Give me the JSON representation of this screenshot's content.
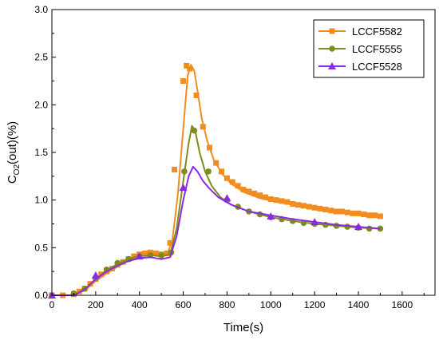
{
  "chart_data": {
    "type": "line",
    "xlabel": "Time(s)",
    "ylabel": {
      "base": "C",
      "sub": "O2",
      "rest": "(out)(%)"
    },
    "xlim": [
      0,
      1750
    ],
    "ylim": [
      0,
      3.0
    ],
    "x_ticks": [
      "0",
      "200",
      "400",
      "600",
      "800",
      "1000",
      "1200",
      "1400",
      "1600"
    ],
    "y_ticks": [
      "0.0",
      "0.5",
      "1.0",
      "1.5",
      "2.0",
      "2.5",
      "3.0"
    ],
    "grid": false,
    "legend_position": "top-right",
    "series": [
      {
        "name": "LCCF5582",
        "color": "#f28c1e",
        "marker": "square",
        "line": [
          [
            0,
            0.0
          ],
          [
            100,
            0.0
          ],
          [
            150,
            0.05
          ],
          [
            200,
            0.15
          ],
          [
            250,
            0.23
          ],
          [
            300,
            0.3
          ],
          [
            350,
            0.37
          ],
          [
            400,
            0.42
          ],
          [
            450,
            0.44
          ],
          [
            500,
            0.44
          ],
          [
            530,
            0.45
          ],
          [
            550,
            0.58
          ],
          [
            575,
            1.05
          ],
          [
            600,
            1.75
          ],
          [
            620,
            2.3
          ],
          [
            635,
            2.42
          ],
          [
            650,
            2.36
          ],
          [
            665,
            2.15
          ],
          [
            685,
            1.85
          ],
          [
            710,
            1.62
          ],
          [
            740,
            1.42
          ],
          [
            780,
            1.27
          ],
          [
            820,
            1.17
          ],
          [
            880,
            1.08
          ],
          [
            950,
            1.02
          ],
          [
            1050,
            0.97
          ],
          [
            1150,
            0.93
          ],
          [
            1250,
            0.89
          ],
          [
            1350,
            0.86
          ],
          [
            1450,
            0.84
          ],
          [
            1500,
            0.83
          ]
        ],
        "points": [
          [
            0,
            0.0
          ],
          [
            50,
            0.0
          ],
          [
            100,
            0.01
          ],
          [
            125,
            0.04
          ],
          [
            150,
            0.07
          ],
          [
            175,
            0.12
          ],
          [
            200,
            0.17
          ],
          [
            225,
            0.22
          ],
          [
            250,
            0.25
          ],
          [
            275,
            0.28
          ],
          [
            300,
            0.32
          ],
          [
            325,
            0.35
          ],
          [
            350,
            0.38
          ],
          [
            375,
            0.41
          ],
          [
            400,
            0.43
          ],
          [
            425,
            0.44
          ],
          [
            450,
            0.45
          ],
          [
            475,
            0.44
          ],
          [
            500,
            0.43
          ],
          [
            525,
            0.44
          ],
          [
            540,
            0.55
          ],
          [
            560,
            1.32
          ],
          [
            600,
            2.25
          ],
          [
            615,
            2.41
          ],
          [
            630,
            2.38
          ],
          [
            660,
            2.1
          ],
          [
            690,
            1.77
          ],
          [
            720,
            1.55
          ],
          [
            750,
            1.39
          ],
          [
            775,
            1.3
          ],
          [
            800,
            1.23
          ],
          [
            825,
            1.19
          ],
          [
            850,
            1.15
          ],
          [
            875,
            1.11
          ],
          [
            900,
            1.09
          ],
          [
            925,
            1.07
          ],
          [
            950,
            1.05
          ],
          [
            975,
            1.03
          ],
          [
            1000,
            1.01
          ],
          [
            1025,
            1.0
          ],
          [
            1050,
            0.99
          ],
          [
            1075,
            0.98
          ],
          [
            1100,
            0.96
          ],
          [
            1125,
            0.95
          ],
          [
            1150,
            0.94
          ],
          [
            1175,
            0.93
          ],
          [
            1200,
            0.92
          ],
          [
            1225,
            0.91
          ],
          [
            1250,
            0.9
          ],
          [
            1275,
            0.89
          ],
          [
            1300,
            0.88
          ],
          [
            1325,
            0.88
          ],
          [
            1350,
            0.87
          ],
          [
            1375,
            0.86
          ],
          [
            1400,
            0.86
          ],
          [
            1425,
            0.85
          ],
          [
            1450,
            0.84
          ],
          [
            1475,
            0.84
          ],
          [
            1500,
            0.83
          ]
        ]
      },
      {
        "name": "LCCF5555",
        "color": "#7f8c1a",
        "marker": "circle",
        "line": [
          [
            0,
            0.0
          ],
          [
            100,
            0.0
          ],
          [
            150,
            0.06
          ],
          [
            200,
            0.17
          ],
          [
            250,
            0.26
          ],
          [
            300,
            0.33
          ],
          [
            350,
            0.38
          ],
          [
            400,
            0.41
          ],
          [
            450,
            0.42
          ],
          [
            500,
            0.41
          ],
          [
            540,
            0.43
          ],
          [
            570,
            0.7
          ],
          [
            600,
            1.2
          ],
          [
            625,
            1.6
          ],
          [
            640,
            1.78
          ],
          [
            655,
            1.72
          ],
          [
            675,
            1.5
          ],
          [
            700,
            1.3
          ],
          [
            730,
            1.15
          ],
          [
            770,
            1.03
          ],
          [
            820,
            0.95
          ],
          [
            900,
            0.88
          ],
          [
            1000,
            0.82
          ],
          [
            1100,
            0.78
          ],
          [
            1200,
            0.75
          ],
          [
            1300,
            0.73
          ],
          [
            1400,
            0.71
          ],
          [
            1500,
            0.7
          ]
        ],
        "points": [
          [
            0,
            0.0
          ],
          [
            100,
            0.02
          ],
          [
            150,
            0.07
          ],
          [
            200,
            0.18
          ],
          [
            250,
            0.27
          ],
          [
            300,
            0.34
          ],
          [
            350,
            0.38
          ],
          [
            400,
            0.41
          ],
          [
            450,
            0.42
          ],
          [
            500,
            0.42
          ],
          [
            545,
            0.45
          ],
          [
            605,
            1.3
          ],
          [
            650,
            1.73
          ],
          [
            715,
            1.3
          ],
          [
            800,
            1.0
          ],
          [
            850,
            0.93
          ],
          [
            900,
            0.88
          ],
          [
            950,
            0.85
          ],
          [
            1000,
            0.82
          ],
          [
            1050,
            0.8
          ],
          [
            1100,
            0.78
          ],
          [
            1150,
            0.76
          ],
          [
            1200,
            0.75
          ],
          [
            1250,
            0.74
          ],
          [
            1300,
            0.73
          ],
          [
            1350,
            0.72
          ],
          [
            1400,
            0.71
          ],
          [
            1450,
            0.7
          ],
          [
            1500,
            0.7
          ]
        ]
      },
      {
        "name": "LCCF5528",
        "color": "#8a2be2",
        "marker": "triangle",
        "line": [
          [
            0,
            0.0
          ],
          [
            100,
            0.0
          ],
          [
            150,
            0.06
          ],
          [
            200,
            0.17
          ],
          [
            250,
            0.25
          ],
          [
            300,
            0.31
          ],
          [
            350,
            0.36
          ],
          [
            400,
            0.39
          ],
          [
            450,
            0.4
          ],
          [
            500,
            0.38
          ],
          [
            540,
            0.4
          ],
          [
            570,
            0.62
          ],
          [
            600,
            1.0
          ],
          [
            625,
            1.25
          ],
          [
            645,
            1.35
          ],
          [
            665,
            1.3
          ],
          [
            690,
            1.2
          ],
          [
            720,
            1.12
          ],
          [
            760,
            1.03
          ],
          [
            820,
            0.95
          ],
          [
            900,
            0.88
          ],
          [
            1000,
            0.84
          ],
          [
            1100,
            0.8
          ],
          [
            1200,
            0.77
          ],
          [
            1300,
            0.74
          ],
          [
            1400,
            0.72
          ],
          [
            1500,
            0.7
          ]
        ],
        "points": [
          [
            0,
            0.0
          ],
          [
            200,
            0.21
          ],
          [
            400,
            0.41
          ],
          [
            600,
            1.13
          ],
          [
            800,
            1.02
          ],
          [
            1000,
            0.83
          ],
          [
            1200,
            0.77
          ],
          [
            1400,
            0.72
          ]
        ]
      }
    ]
  }
}
